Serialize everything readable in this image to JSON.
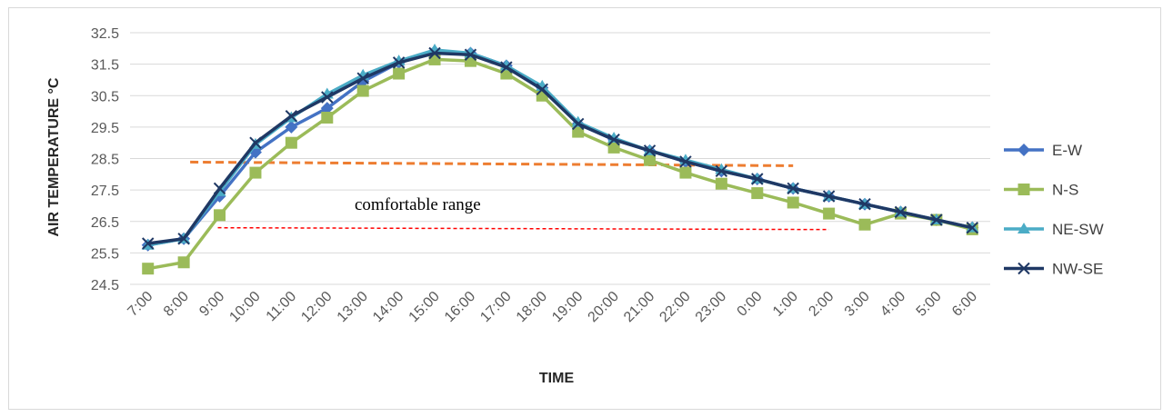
{
  "chart_data": {
    "type": "line",
    "xlabel": "TIME",
    "ylabel": "AIR TEMPERATURE °C",
    "categories": [
      "7:00",
      "8:00",
      "9:00",
      "10:00",
      "11:00",
      "12:00",
      "13:00",
      "14:00",
      "15:00",
      "16:00",
      "17:00",
      "18:00",
      "19:00",
      "20:00",
      "21:00",
      "22:00",
      "23:00",
      "0:00",
      "1:00",
      "2:00",
      "3:00",
      "4:00",
      "5:00",
      "6:00"
    ],
    "y_ticks": [
      "24.5",
      "25.5",
      "26.5",
      "27.5",
      "28.5",
      "29.5",
      "30.5",
      "31.5",
      "32.5"
    ],
    "ylim": [
      24.5,
      32.5
    ],
    "grid": true,
    "legend_position": "right",
    "series": [
      {
        "name": "E-W",
        "color": "#4472c4",
        "marker": "diamond",
        "values": [
          25.75,
          25.95,
          27.3,
          28.7,
          29.5,
          30.1,
          30.95,
          31.55,
          31.9,
          31.85,
          31.45,
          30.75,
          29.6,
          29.1,
          28.75,
          28.4,
          28.1,
          27.85,
          27.55,
          27.3,
          27.05,
          26.8,
          26.55,
          26.3
        ]
      },
      {
        "name": "N-S",
        "color": "#9bbb59",
        "marker": "square",
        "values": [
          25.0,
          25.2,
          26.7,
          28.05,
          29.0,
          29.8,
          30.65,
          31.2,
          31.65,
          31.6,
          31.2,
          30.5,
          29.35,
          28.85,
          28.45,
          28.05,
          27.7,
          27.4,
          27.1,
          26.75,
          26.4,
          26.75,
          26.55,
          26.25
        ]
      },
      {
        "name": "NE-SW",
        "color": "#4bacc6",
        "marker": "triangle",
        "values": [
          25.75,
          25.95,
          27.45,
          28.95,
          29.8,
          30.55,
          31.15,
          31.6,
          31.95,
          31.85,
          31.45,
          30.8,
          29.65,
          29.15,
          28.75,
          28.45,
          28.15,
          27.85,
          27.55,
          27.3,
          27.05,
          26.8,
          26.55,
          26.3
        ]
      },
      {
        "name": "NW-SE",
        "color": "#1f3864",
        "marker": "x",
        "values": [
          25.8,
          25.95,
          27.55,
          29.0,
          29.85,
          30.45,
          31.05,
          31.55,
          31.85,
          31.8,
          31.4,
          30.7,
          29.6,
          29.1,
          28.75,
          28.4,
          28.1,
          27.85,
          27.55,
          27.3,
          27.05,
          26.8,
          26.55,
          26.3
        ]
      }
    ],
    "annotations": {
      "text": "comfortable range",
      "upper_line": {
        "value": 28.3,
        "from": "8:00",
        "to": "1:00",
        "color": "#ed7d31"
      },
      "lower_line": {
        "value": 26.3,
        "from": "9:00",
        "to": "2:00",
        "color": "#ff0000"
      }
    }
  }
}
